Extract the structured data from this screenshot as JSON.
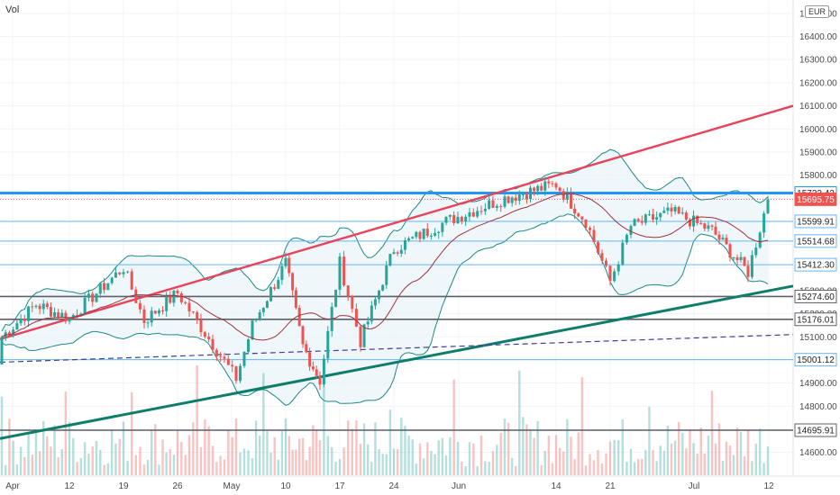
{
  "header": {
    "volume_label": "Vol",
    "currency": "EUR"
  },
  "colors": {
    "up": "#26a69a",
    "down": "#ef5350",
    "upper_trend": "#e8435a",
    "lower_trend": "#0e7d6a",
    "resistance": "#2196f3",
    "level_blue": "#64b5f6",
    "level_gray": "#5d6068",
    "dashed": "#3f3f8f",
    "bands": "#1b8a86",
    "band_fill": "#e8f4f8",
    "ma": "#a0333a",
    "grid": "#f0f3fa",
    "current_price": "#ef5350"
  },
  "chart_data": {
    "type": "candlestick",
    "y_axis_ticks": [
      "14600.00",
      "14700.00",
      "14800.00",
      "14900.00",
      "15000.00",
      "15100.00",
      "15200.00",
      "15300.00",
      "15400.00",
      "15500.00",
      "15600.00",
      "15700.00",
      "15800.00",
      "15900.00",
      "16000.00",
      "16100.00",
      "16200.00",
      "16300.00",
      "16400.00",
      "16500.00"
    ],
    "ylim": [
      14565,
      16550
    ],
    "x_axis_ticks": [
      "Apr",
      "12",
      "19",
      "26",
      "May",
      "10",
      "17",
      "24",
      "Jun",
      "14",
      "21",
      "Jul",
      "12"
    ],
    "price_labels": [
      {
        "text": "15722.42",
        "value": 15722.42,
        "style": "resistance"
      },
      {
        "text": "15695.75",
        "value": 15695.75,
        "style": "current"
      },
      {
        "text": "15599.91",
        "value": 15599.91,
        "style": "level_blue"
      },
      {
        "text": "15514.68",
        "value": 15514.68,
        "style": "level_blue"
      },
      {
        "text": "15412.30",
        "value": 15412.3,
        "style": "level_blue"
      },
      {
        "text": "15274.60",
        "value": 15274.6,
        "style": "level_gray"
      },
      {
        "text": "15176.01",
        "value": 15176.01,
        "style": "level_gray"
      },
      {
        "text": "15001.12",
        "value": 15001.12,
        "style": "level_blue"
      },
      {
        "text": "14695.91",
        "value": 14695.91,
        "style": "level_gray"
      }
    ],
    "series": [
      {
        "name": "",
        "kind": "ohlc",
        "points": [
          [
            "Mar 31",
            14980,
            15120,
            14920,
            15100
          ],
          [
            "Apr 6",
            15100,
            15280,
            15060,
            15240
          ],
          [
            "Apr 12",
            15240,
            15290,
            15120,
            15180
          ],
          [
            "Apr 19",
            15180,
            15460,
            15160,
            15400
          ],
          [
            "Apr 22",
            15400,
            15420,
            15140,
            15170
          ],
          [
            "Apr 26",
            15170,
            15310,
            15140,
            15290
          ],
          [
            "May 3",
            15290,
            15330,
            14880,
            14920
          ],
          [
            "May 5",
            14920,
            15180,
            14860,
            15150
          ],
          [
            "May 10",
            15150,
            15470,
            15130,
            15420
          ],
          [
            "May 12",
            15420,
            15430,
            15000,
            15060
          ],
          [
            "May 14",
            15060,
            15080,
            14870,
            14910
          ],
          [
            "May 17",
            14910,
            15460,
            14900,
            15420
          ],
          [
            "May 20",
            15420,
            15430,
            15020,
            15080
          ],
          [
            "May 24",
            15080,
            15530,
            15070,
            15480
          ],
          [
            "May 31",
            15480,
            15650,
            15380,
            15600
          ],
          [
            "Jun 7",
            15600,
            15740,
            15560,
            15700
          ],
          [
            "Jun 14",
            15700,
            15810,
            15660,
            15760
          ],
          [
            "Jun 18",
            15760,
            15780,
            15560,
            15600
          ],
          [
            "Jun 21",
            15600,
            15630,
            15280,
            15340
          ],
          [
            "Jun 24",
            15340,
            15620,
            15320,
            15580
          ],
          [
            "Jul 1",
            15580,
            15730,
            15520,
            15640
          ],
          [
            "Jul 7",
            15640,
            15720,
            15500,
            15560
          ],
          [
            "Jul 9",
            15560,
            15590,
            15320,
            15380
          ],
          [
            "Jul 12",
            15380,
            15700,
            15360,
            15695.75
          ]
        ]
      }
    ]
  }
}
